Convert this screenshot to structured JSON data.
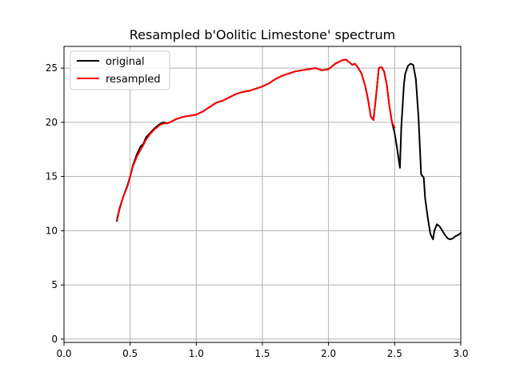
{
  "chart_data": {
    "type": "line",
    "title": "Resampled b'Oolitic Limestone' spectrum",
    "xlabel": "",
    "ylabel": "",
    "xlim": [
      0.0,
      3.0
    ],
    "ylim": [
      -0.3,
      27.0
    ],
    "xticks": [
      "0.0",
      "0.5",
      "1.0",
      "1.5",
      "2.0",
      "2.5",
      "3.0"
    ],
    "yticks": [
      "0",
      "5",
      "10",
      "15",
      "20",
      "25"
    ],
    "grid": true,
    "legend_position": "top-left",
    "series": [
      {
        "name": "original",
        "color": "#000000",
        "x": [
          0.4,
          0.42,
          0.45,
          0.48,
          0.5,
          0.52,
          0.55,
          0.58,
          0.6,
          0.62,
          0.65,
          0.68,
          0.7,
          0.72,
          0.75,
          0.78,
          0.8,
          0.85,
          0.9,
          0.95,
          1.0,
          1.05,
          1.1,
          1.15,
          1.2,
          1.25,
          1.3,
          1.35,
          1.4,
          1.45,
          1.5,
          1.55,
          1.6,
          1.65,
          1.7,
          1.75,
          1.8,
          1.85,
          1.9,
          1.95,
          2.0,
          2.05,
          2.1,
          2.13,
          2.15,
          2.18,
          2.2,
          2.22,
          2.25,
          2.28,
          2.3,
          2.32,
          2.34,
          2.36,
          2.38,
          2.4,
          2.42,
          2.44,
          2.46,
          2.48,
          2.5,
          2.52,
          2.54,
          2.55,
          2.57,
          2.58,
          2.6,
          2.62,
          2.64,
          2.66,
          2.68,
          2.7,
          2.72,
          2.73,
          2.75,
          2.77,
          2.79,
          2.8,
          2.82,
          2.84,
          2.86,
          2.88,
          2.9,
          2.92,
          2.94,
          2.96,
          2.98,
          3.0
        ],
        "y": [
          10.9,
          12.0,
          13.2,
          14.2,
          15.0,
          16.0,
          17.0,
          17.8,
          18.0,
          18.6,
          19.0,
          19.4,
          19.6,
          19.8,
          20.0,
          19.9,
          20.0,
          20.3,
          20.5,
          20.6,
          20.7,
          21.0,
          21.4,
          21.8,
          22.0,
          22.3,
          22.6,
          22.8,
          22.9,
          23.1,
          23.3,
          23.6,
          24.0,
          24.3,
          24.5,
          24.7,
          24.8,
          24.9,
          25.0,
          24.8,
          24.9,
          25.4,
          25.7,
          25.8,
          25.6,
          25.3,
          25.4,
          25.1,
          24.5,
          23.2,
          22.0,
          20.5,
          20.3,
          22.5,
          25.0,
          25.1,
          24.7,
          23.5,
          21.5,
          20.0,
          19.0,
          17.5,
          15.8,
          19.5,
          23.5,
          24.5,
          25.2,
          25.4,
          25.3,
          24.0,
          20.5,
          15.2,
          14.9,
          13.0,
          11.2,
          9.7,
          9.2,
          10.0,
          10.6,
          10.4,
          10.0,
          9.6,
          9.3,
          9.2,
          9.3,
          9.5,
          9.6,
          9.8
        ]
      },
      {
        "name": "resampled",
        "color": "#ff0000",
        "x": [
          0.4,
          0.42,
          0.45,
          0.48,
          0.5,
          0.52,
          0.55,
          0.58,
          0.6,
          0.62,
          0.65,
          0.68,
          0.7,
          0.72,
          0.75,
          0.78,
          0.8,
          0.85,
          0.9,
          0.95,
          1.0,
          1.05,
          1.1,
          1.15,
          1.2,
          1.25,
          1.3,
          1.35,
          1.4,
          1.45,
          1.5,
          1.55,
          1.6,
          1.65,
          1.7,
          1.75,
          1.8,
          1.85,
          1.9,
          1.95,
          2.0,
          2.05,
          2.1,
          2.13,
          2.15,
          2.18,
          2.2,
          2.22,
          2.25,
          2.28,
          2.3,
          2.32,
          2.34,
          2.36,
          2.38,
          2.4,
          2.42,
          2.44,
          2.46,
          2.48,
          2.5
        ],
        "y": [
          11.0,
          12.1,
          13.2,
          14.1,
          15.0,
          15.9,
          16.8,
          17.5,
          17.9,
          18.4,
          18.9,
          19.3,
          19.5,
          19.7,
          19.9,
          19.9,
          20.0,
          20.3,
          20.5,
          20.6,
          20.7,
          21.0,
          21.4,
          21.8,
          22.0,
          22.3,
          22.6,
          22.8,
          22.9,
          23.1,
          23.3,
          23.6,
          24.0,
          24.3,
          24.5,
          24.7,
          24.8,
          24.9,
          25.0,
          24.8,
          24.9,
          25.4,
          25.7,
          25.8,
          25.6,
          25.3,
          25.4,
          25.1,
          24.5,
          23.2,
          22.0,
          20.5,
          20.2,
          22.5,
          25.0,
          25.1,
          24.7,
          23.5,
          21.5,
          20.0,
          19.5
        ]
      }
    ]
  }
}
